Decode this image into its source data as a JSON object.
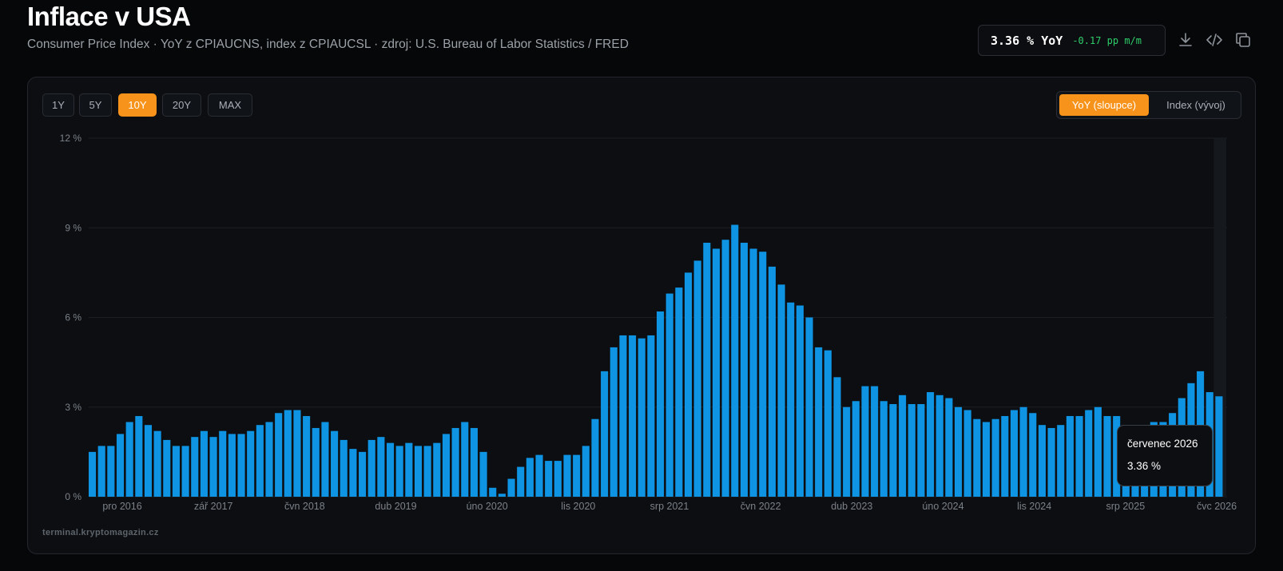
{
  "header": {
    "title": "Inflace v USA",
    "subtitle": "Consumer Price Index · YoY z CPIAUCNS, index z CPIAUCSL · zdroj: U.S. Bureau of Labor Statistics / FRED"
  },
  "kpi": {
    "value": "3.36 % YoY",
    "delta": "-0.17 pp m/m"
  },
  "toolbar": {
    "icons": [
      "download-icon",
      "code-icon",
      "copy-icon"
    ]
  },
  "ranges": [
    {
      "label": "1Y",
      "active": false
    },
    {
      "label": "5Y",
      "active": false
    },
    {
      "label": "10Y",
      "active": true
    },
    {
      "label": "20Y",
      "active": false
    },
    {
      "label": "MAX",
      "active": false
    }
  ],
  "modes": [
    {
      "label": "YoY (sloupce)",
      "active": true
    },
    {
      "label": "Index (vývoj)",
      "active": false
    }
  ],
  "watermark": "terminal.kryptomagazin.cz",
  "tooltip": {
    "date": "červenec 2026",
    "value": "3.36 %"
  },
  "colors": {
    "accent": "#f7931a",
    "bar": "#0f94e3",
    "delta_negative_text": "#2fce6a",
    "background": "#060708"
  },
  "chart_data": {
    "type": "bar",
    "x_tick_labels": [
      "pro 2016",
      "zář 2017",
      "čvn 2018",
      "dub 2019",
      "úno 2020",
      "lis 2020",
      "srp 2021",
      "čvn 2022",
      "dub 2023",
      "úno 2024",
      "lis 2024",
      "srp 2025",
      "čvc 2026"
    ],
    "y_tick_labels": [
      "0 %",
      "3 %",
      "6 %",
      "9 %",
      "12 %"
    ],
    "ylim": [
      0,
      12
    ],
    "grid": true,
    "series": [
      {
        "values": [
          1.5,
          1.7,
          1.7,
          2.1,
          2.5,
          2.7,
          2.4,
          2.2,
          1.9,
          1.7,
          1.7,
          2.0,
          2.2,
          2.0,
          2.2,
          2.1,
          2.1,
          2.2,
          2.4,
          2.5,
          2.8,
          2.9,
          2.9,
          2.7,
          2.3,
          2.5,
          2.2,
          1.9,
          1.6,
          1.5,
          1.9,
          2.0,
          1.8,
          1.7,
          1.8,
          1.7,
          1.7,
          1.8,
          2.1,
          2.3,
          2.5,
          2.3,
          1.5,
          0.3,
          0.1,
          0.6,
          1.0,
          1.3,
          1.4,
          1.2,
          1.2,
          1.4,
          1.4,
          1.7,
          2.6,
          4.2,
          5.0,
          5.4,
          5.4,
          5.3,
          5.4,
          6.2,
          6.8,
          7.0,
          7.5,
          7.9,
          8.5,
          8.3,
          8.6,
          9.1,
          8.5,
          8.3,
          8.2,
          7.7,
          7.1,
          6.5,
          6.4,
          6.0,
          5.0,
          4.9,
          4.0,
          3.0,
          3.2,
          3.7,
          3.7,
          3.2,
          3.1,
          3.4,
          3.1,
          3.1,
          3.5,
          3.4,
          3.3,
          3.0,
          2.9,
          2.6,
          2.5,
          2.6,
          2.7,
          2.9,
          3.0,
          2.8,
          2.4,
          2.3,
          2.4,
          2.7,
          2.7,
          2.9,
          3.0,
          2.7,
          2.7,
          2.4,
          2.4,
          2.4,
          2.5,
          2.5,
          2.8,
          3.3,
          3.8,
          4.2,
          3.5,
          3.36
        ]
      }
    ],
    "highlight": {
      "label": "červenec 2026",
      "value": 3.36
    }
  }
}
